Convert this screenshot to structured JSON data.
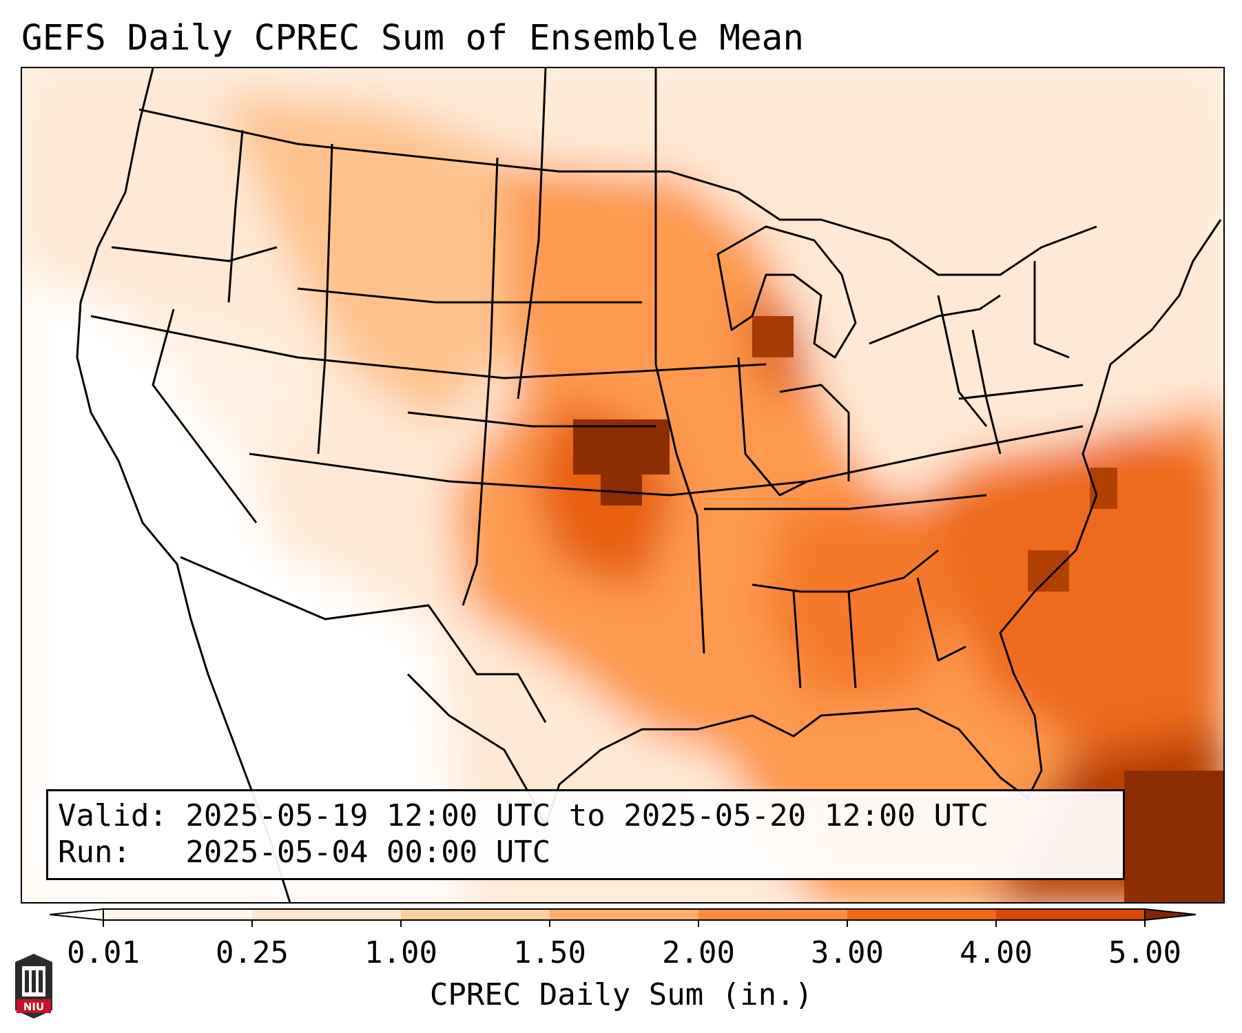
{
  "title": "GEFS Daily CPREC Sum of Ensemble Mean",
  "info": {
    "valid_line": "Valid: 2025-05-19 12:00 UTC to 2025-05-20 12:00 UTC",
    "run_line": "Run:   2025-05-04 00:00 UTC"
  },
  "colorbar": {
    "label": "CPREC Daily Sum (in.)",
    "ticks": [
      "0.01",
      "0.25",
      "1.00",
      "1.50",
      "2.00",
      "3.00",
      "4.00",
      "5.00"
    ],
    "colors": [
      "#fff5eb",
      "#fee6ce",
      "#fdd0a2",
      "#fdae6b",
      "#fd8d3c",
      "#f16913",
      "#d94801",
      "#8c2d04"
    ],
    "under_color": "#ffffff",
    "over_color": "#7f2704"
  },
  "logo": {
    "text": "NIU",
    "icon": "niu-logo-icon",
    "color": "#c8102e"
  }
}
